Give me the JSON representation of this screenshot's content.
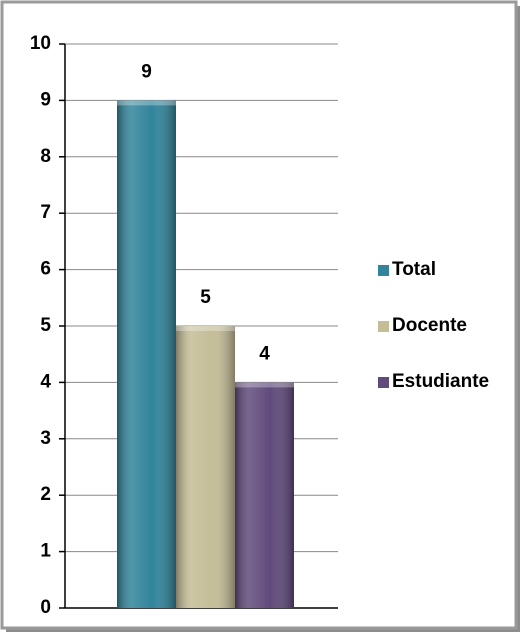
{
  "chart_data": {
    "type": "bar",
    "categories": [
      null
    ],
    "series": [
      {
        "name": "Total",
        "color": "#31849b",
        "values": [
          9
        ]
      },
      {
        "name": "Docente",
        "color": "#c4bd97",
        "values": [
          5
        ]
      },
      {
        "name": "Estudiante",
        "color": "#604a7b",
        "values": [
          4
        ]
      }
    ],
    "ylim": [
      0,
      10
    ],
    "yticks": [
      0,
      1,
      2,
      3,
      4,
      5,
      6,
      7,
      8,
      9,
      10
    ],
    "grid": true,
    "legend": "right"
  }
}
